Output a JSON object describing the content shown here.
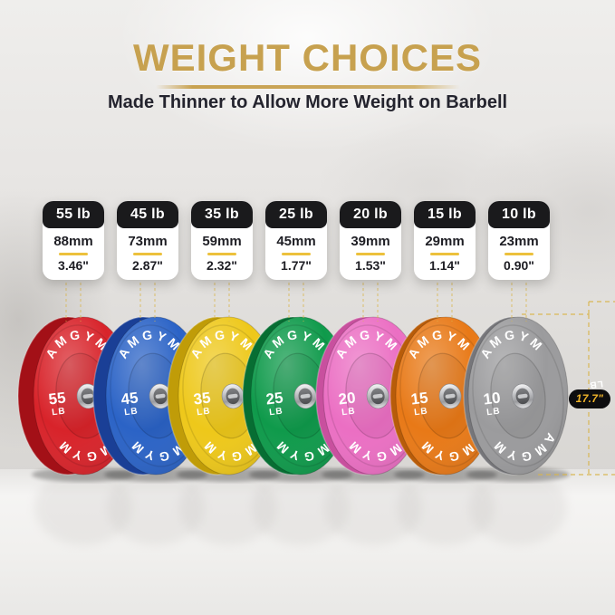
{
  "header": {
    "title": "WEIGHT CHOICES",
    "subtitle": "Made Thinner to Allow More Weight on Barbell"
  },
  "diameter": {
    "label": "17.7\""
  },
  "accent_colors": {
    "gold": "#c8a251",
    "card_divider": "#ecc13c",
    "measure_dash": "#d8b54e",
    "pill_text": "#f0b429",
    "pill_bg": "#0d0d0f"
  },
  "plates": [
    {
      "weight_label": "55 lb",
      "thickness_mm": "88mm",
      "thickness_in": "3.46\"",
      "weight_number": "55",
      "weight_unit": "LB",
      "brand": "AMGYM",
      "face_color": "#d8232a",
      "rim_color": "#a31017"
    },
    {
      "weight_label": "45 lb",
      "thickness_mm": "73mm",
      "thickness_in": "2.87\"",
      "weight_number": "45",
      "weight_unit": "LB",
      "brand": "AMGYM",
      "face_color": "#2b63c6",
      "rim_color": "#1a3f96"
    },
    {
      "weight_label": "35 lb",
      "thickness_mm": "59mm",
      "thickness_in": "2.32\"",
      "weight_number": "35",
      "weight_unit": "LB",
      "brand": "AMGYM",
      "face_color": "#eec81a",
      "rim_color": "#c09c08"
    },
    {
      "weight_label": "25 lb",
      "thickness_mm": "45mm",
      "thickness_in": "1.77\"",
      "weight_number": "25",
      "weight_unit": "LB",
      "brand": "AMGYM",
      "face_color": "#0f9a4b",
      "rim_color": "#076e33"
    },
    {
      "weight_label": "20 lb",
      "thickness_mm": "39mm",
      "thickness_in": "1.53\"",
      "weight_number": "20",
      "weight_unit": "LB",
      "brand": "AMGYM",
      "face_color": "#eb6fc3",
      "rim_color": "#c8509e"
    },
    {
      "weight_label": "15 lb",
      "thickness_mm": "29mm",
      "thickness_in": "1.14\"",
      "weight_number": "15",
      "weight_unit": "LB",
      "brand": "AMGYM",
      "face_color": "#e87917",
      "rim_color": "#b85c09"
    },
    {
      "weight_label": "10 lb",
      "thickness_mm": "23mm",
      "thickness_in": "0.90\"",
      "weight_number": "10",
      "weight_unit": "LB",
      "brand": "AMGYM",
      "face_color": "#9b9b9d",
      "rim_color": "#76767a"
    }
  ]
}
